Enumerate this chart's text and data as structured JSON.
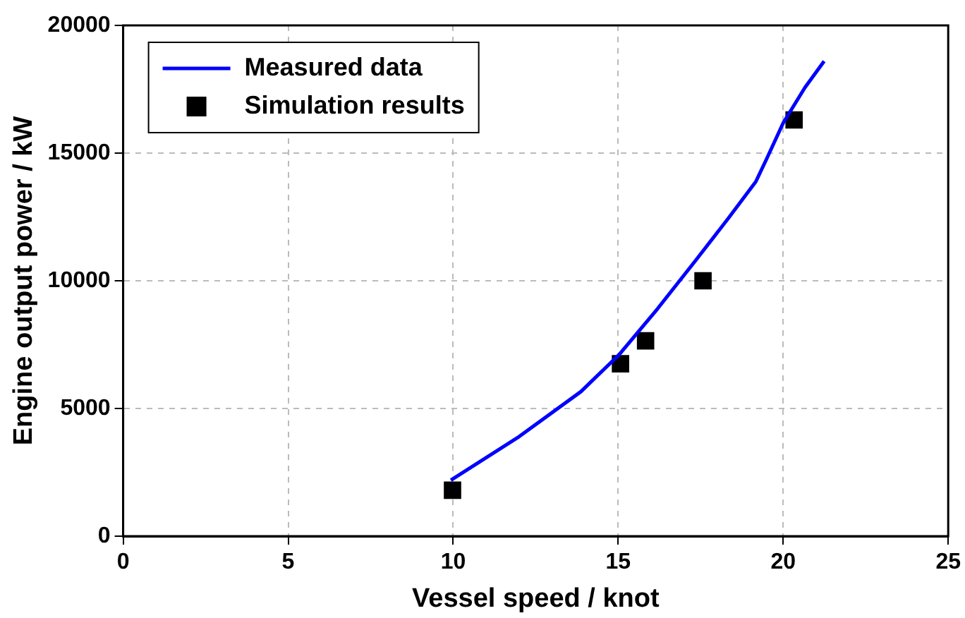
{
  "chart_data": {
    "type": "line",
    "xlabel": "Vessel speed / knot",
    "ylabel": "Engine output power / kW",
    "series": [
      {
        "name": "Measured data",
        "type": "line",
        "color": "#0000ff",
        "marker": "none",
        "line_style": "solid",
        "x": [
          9.93,
          12.0,
          13.87,
          15.03,
          16.19,
          17.35,
          18.34,
          19.17,
          19.5,
          20.0,
          20.66,
          21.24
        ],
        "values": [
          2190,
          3900,
          5660,
          7110,
          8900,
          10800,
          12450,
          13880,
          14780,
          16180,
          17570,
          18600
        ]
      },
      {
        "name": "Simulation results",
        "type": "scatter",
        "color": "#000000",
        "marker": "square",
        "x": [
          9.98,
          15.07,
          15.83,
          17.57,
          20.33
        ],
        "values": [
          1800,
          6750,
          7650,
          10000,
          16300
        ]
      }
    ],
    "xlim": [
      0,
      25
    ],
    "xticks": [
      0,
      5,
      10,
      15,
      20,
      25
    ],
    "ylim": [
      0,
      20000
    ],
    "yticks": [
      0,
      5000,
      10000,
      15000,
      20000
    ],
    "grid": true,
    "legend": "top left"
  }
}
